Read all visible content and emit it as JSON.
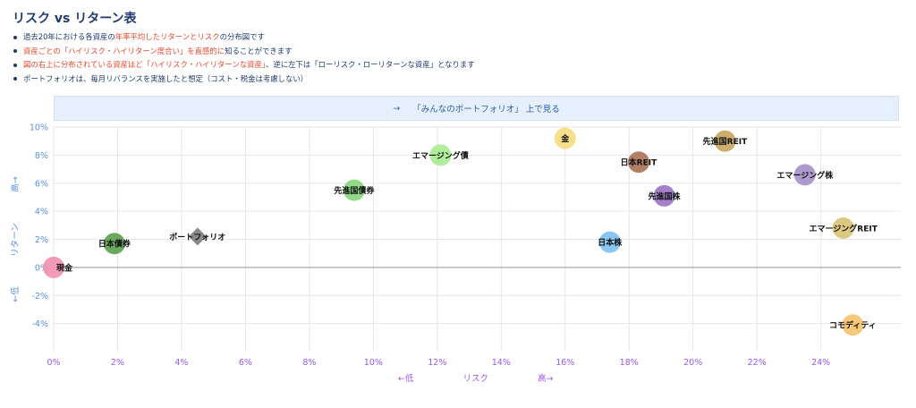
{
  "page": {
    "title": "リスク vs リターン表",
    "bullets": [
      [
        {
          "t": "過去20年における各資産の"
        },
        {
          "t": "年率平均したリターンとリスク",
          "hl": true
        },
        {
          "t": "の分布図です"
        }
      ],
      [
        {
          "t": "資産ごとの「ハイリスク・ハイリターン度合い」を直感的に",
          "hl": true
        },
        {
          "t": "知ることができます"
        }
      ],
      [
        {
          "t": "図の右上に分布されている資産ほど「ハイリスク・ハイリターンな資産」",
          "hl": true
        },
        {
          "t": "、逆に左下は「ローリスク・ローリターンな資産」となります"
        }
      ],
      [
        {
          "t": "ポートフォリオは、毎月リバランスを実施したと想定（コスト・税金は考慮しない）"
        }
      ]
    ],
    "link_banner": {
      "arrow": "→",
      "label": "「みんなのポートフォリオ」 上で見る"
    }
  },
  "chart_data": {
    "type": "scatter",
    "xlabel": {
      "low": "←低",
      "name": "リスク",
      "high": "高→"
    },
    "ylabel": {
      "high": "高→",
      "name": "リターン",
      "low": "←低"
    },
    "xlim": [
      0,
      26.5
    ],
    "ylim": [
      -6,
      10
    ],
    "x_ticks": [
      "0%",
      "2%",
      "4%",
      "6%",
      "8%",
      "10%",
      "12%",
      "14%",
      "16%",
      "18%",
      "20%",
      "22%",
      "24%"
    ],
    "x_tick_values": [
      0,
      2,
      4,
      6,
      8,
      10,
      12,
      14,
      16,
      18,
      20,
      22,
      24
    ],
    "y_ticks": [
      "-4%",
      "-2%",
      "0%",
      "2%",
      "4%",
      "6%",
      "8%",
      "10%"
    ],
    "y_tick_values": [
      -4,
      -2,
      0,
      2,
      4,
      6,
      8,
      10
    ],
    "grid": true,
    "points": [
      {
        "name": "現金",
        "x": 0.0,
        "y": 0.0,
        "color": "#f28fb0",
        "shape": "circle",
        "label_pos": "right"
      },
      {
        "name": "日本債券",
        "x": 1.9,
        "y": 1.7,
        "color": "#5a9e4b",
        "shape": "circle",
        "label_pos": "center"
      },
      {
        "name": "ポートフォリオ",
        "x": 4.5,
        "y": 2.2,
        "color": "#8a8a8a",
        "shape": "diamond",
        "label_pos": "center"
      },
      {
        "name": "先進国債券",
        "x": 9.4,
        "y": 5.5,
        "color": "#86d67b",
        "shape": "circle",
        "label_pos": "center"
      },
      {
        "name": "エマージング債",
        "x": 12.1,
        "y": 8.0,
        "color": "#a8ec8f",
        "shape": "circle",
        "label_pos": "center"
      },
      {
        "name": "金",
        "x": 16.0,
        "y": 9.2,
        "color": "#f7dc7e",
        "shape": "circle",
        "label_pos": "center"
      },
      {
        "name": "日本株",
        "x": 17.4,
        "y": 1.8,
        "color": "#7cc0f0",
        "shape": "circle",
        "label_pos": "center"
      },
      {
        "name": "日本REIT",
        "x": 18.3,
        "y": 7.5,
        "color": "#a87256",
        "shape": "circle",
        "label_pos": "center"
      },
      {
        "name": "先進国株",
        "x": 19.1,
        "y": 5.1,
        "color": "#9a72c4",
        "shape": "circle",
        "label_pos": "center"
      },
      {
        "name": "先進国REIT",
        "x": 21.0,
        "y": 9.0,
        "color": "#c9a560",
        "shape": "circle",
        "label_pos": "center"
      },
      {
        "name": "エマージング株",
        "x": 23.5,
        "y": 6.6,
        "color": "#a58fc9",
        "shape": "circle",
        "label_pos": "center"
      },
      {
        "name": "エマージングREIT",
        "x": 24.7,
        "y": 2.8,
        "color": "#d8c373",
        "shape": "circle",
        "label_pos": "center"
      },
      {
        "name": "コモディティ",
        "x": 25.0,
        "y": -4.1,
        "color": "#f7c26b",
        "shape": "circle",
        "label_pos": "center"
      }
    ]
  }
}
